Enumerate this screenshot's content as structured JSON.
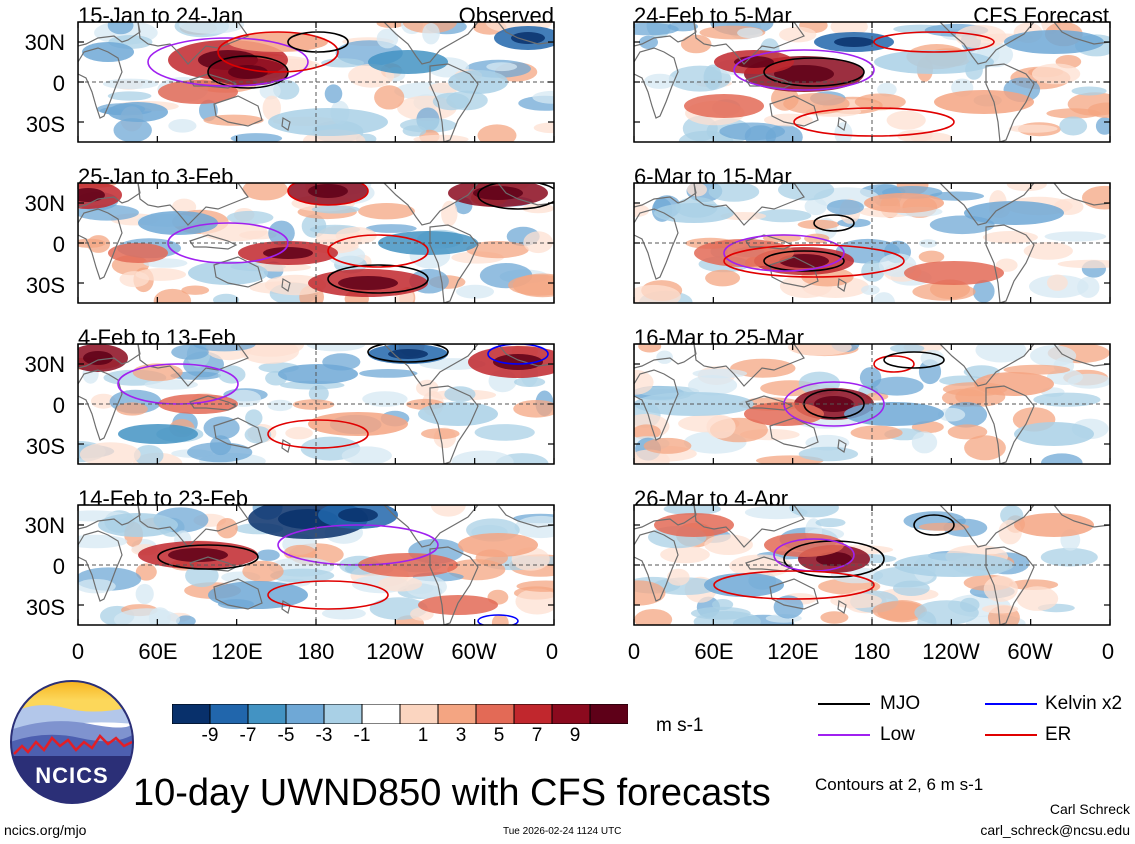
{
  "title": "10-day UWND850 with CFS forecasts",
  "observed_label": "Observed",
  "forecast_label": "CFS Forecast",
  "panels_left": [
    {
      "period": "15-Jan to 24-Jan"
    },
    {
      "period": "25-Jan to 3-Feb"
    },
    {
      "period": "4-Feb to 13-Feb"
    },
    {
      "period": "14-Feb to 23-Feb"
    }
  ],
  "panels_right": [
    {
      "period": "24-Feb to 5-Mar"
    },
    {
      "period": "6-Mar to 15-Mar"
    },
    {
      "period": "16-Mar to 25-Mar"
    },
    {
      "period": "26-Mar to 4-Apr"
    }
  ],
  "lat_labels": [
    "30N",
    "0",
    "30S"
  ],
  "lon_labels": [
    "0",
    "60E",
    "120E",
    "180",
    "120W",
    "60W",
    "0"
  ],
  "colorbar": {
    "labels": [
      "-9",
      "-7",
      "-5",
      "-3",
      "-1",
      "1",
      "3",
      "5",
      "7",
      "9"
    ],
    "colors": [
      "#08306b",
      "#2166ac",
      "#4393c3",
      "#6fa8d6",
      "#a9d0e6",
      "#ffffff",
      "#fbd5c0",
      "#f4a582",
      "#e36a56",
      "#c1272d",
      "#8b0a1e",
      "#5e0018"
    ],
    "unit": "m s-1"
  },
  "legend": {
    "mjo": "MJO",
    "low": "Low",
    "kelvin": "Kelvin x2",
    "er": "ER",
    "colors": {
      "mjo": "#000000",
      "low": "#a020f0",
      "kelvin": "#0000ff",
      "er": "#e00000"
    }
  },
  "contour_note": "Contours at 2, 6 m s-1",
  "logo_text": "NCICS",
  "footer": {
    "url": "ncics.org/mjo",
    "timestamp": "Tue 2026-02-24 1124 UTC",
    "author": "Carl Schreck",
    "email": "carl_schreck@ncsu.edu"
  }
}
